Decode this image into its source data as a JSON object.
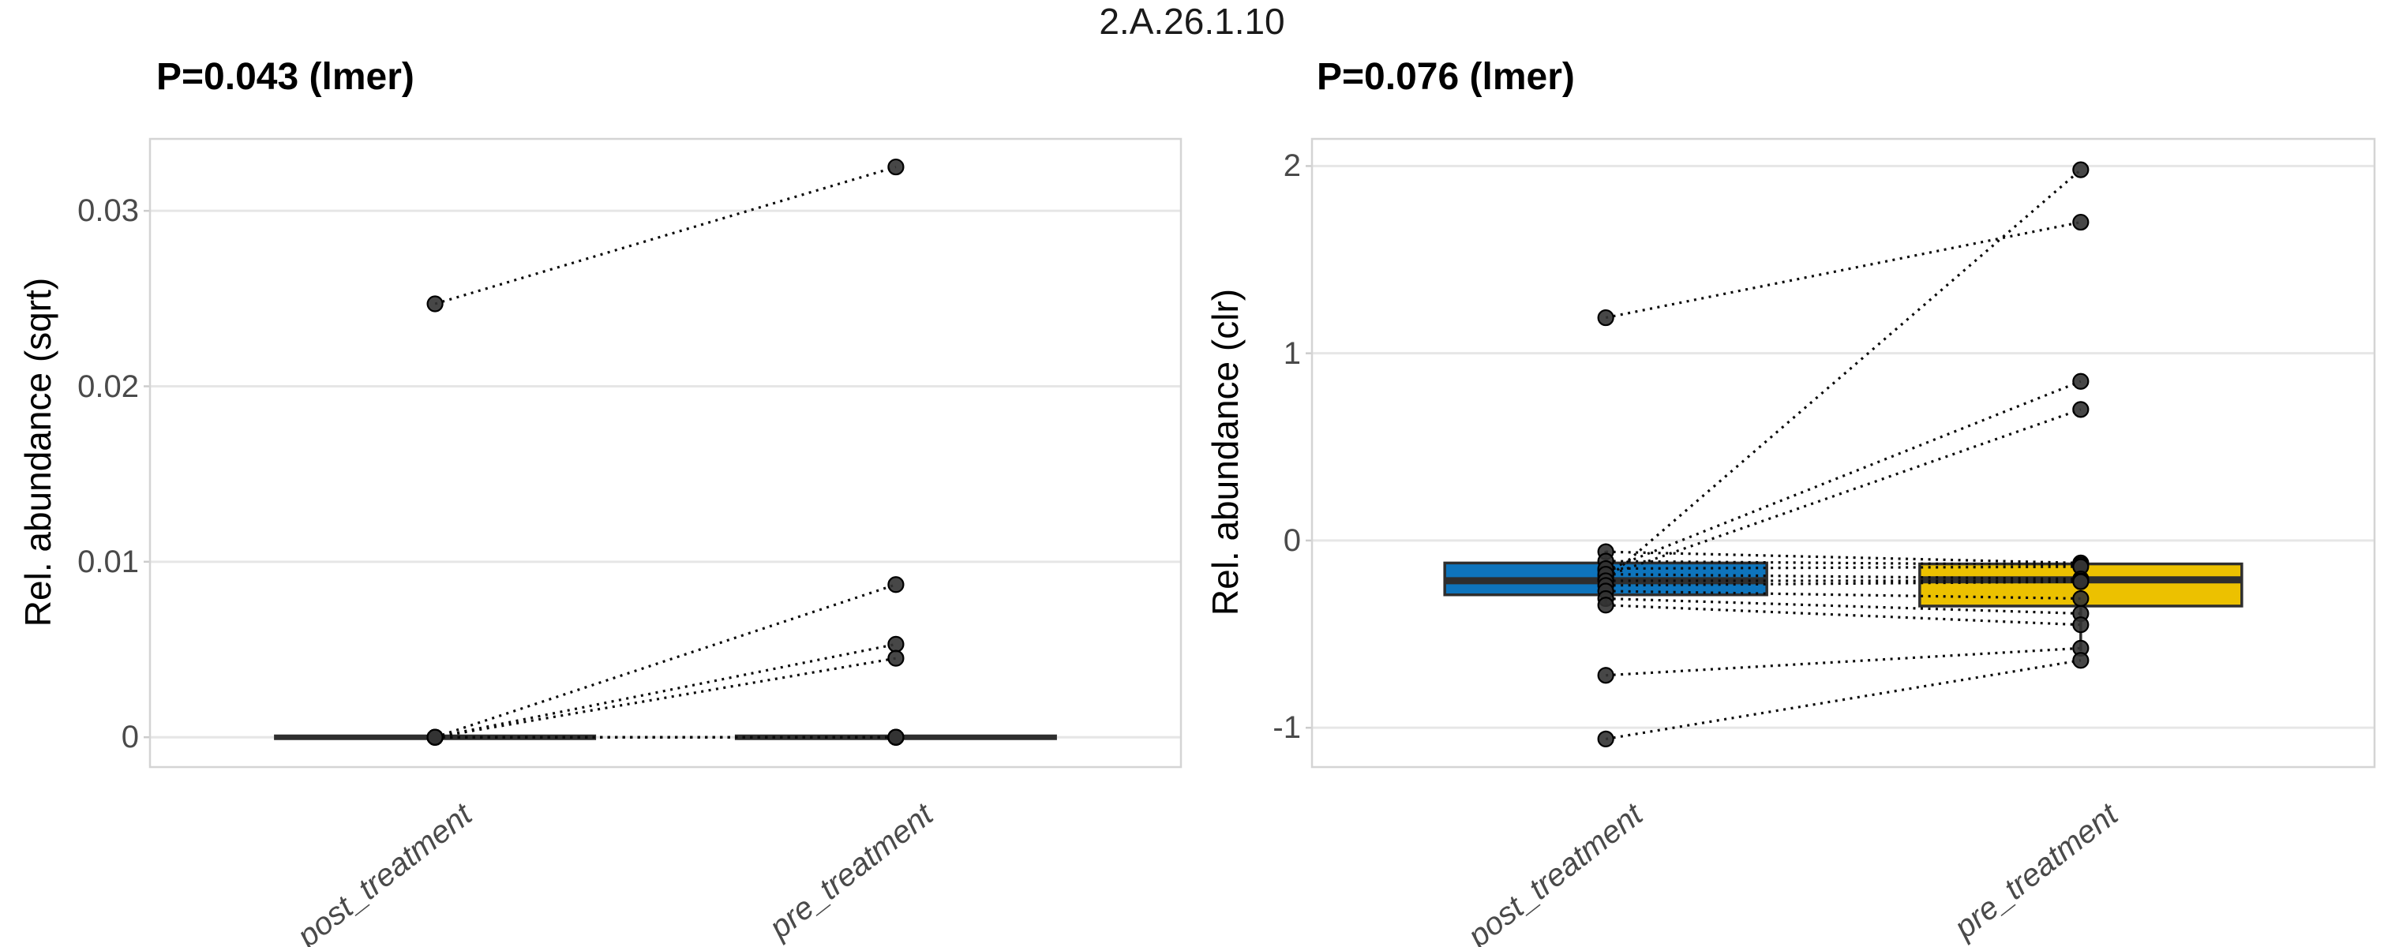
{
  "figure_title": "2.A.26.1.10",
  "colors": {
    "post_box_fill": "#0E74BC",
    "pre_box_fill": "#ECC100",
    "box_stroke": "#2e2e2e",
    "point_fill": "#333333",
    "point_stroke": "#000000",
    "pair_line": "#0a0a0a",
    "gridline": "#e6e6e6",
    "panel_border": "#d4d4d4",
    "tick_text": "#4a4a4a",
    "title_text": "#000000"
  },
  "chart_data": [
    {
      "type": "scatter",
      "subtype": "paired_points_with_boxplots",
      "title": "P=0.043 (lmer)",
      "ylabel": "Rel. abundance (sqrt)",
      "xlabel": "",
      "categories": [
        "post_treatment",
        "pre_treatment"
      ],
      "ylim": [
        -0.0017,
        0.0341
      ],
      "yticks": {
        "values": [
          0,
          0.01,
          0.02,
          0.03
        ],
        "labels": [
          "0",
          "0.01",
          "0.02",
          "0.03"
        ]
      },
      "grid": "horizontal",
      "legend": "none",
      "pairs_note": "each pair is [post_treatment_value, pre_treatment_value]",
      "pairs": [
        [
          0.0247,
          0.0325
        ],
        [
          0,
          0.0087
        ],
        [
          0,
          0.0053
        ],
        [
          0,
          0.0045
        ],
        [
          0,
          0
        ],
        [
          0,
          0
        ],
        [
          0,
          0
        ],
        [
          0,
          0
        ],
        [
          0,
          0
        ],
        [
          0,
          0
        ],
        [
          0,
          0
        ],
        [
          0,
          0
        ],
        [
          0,
          0
        ],
        [
          0,
          0
        ],
        [
          0,
          0
        ]
      ],
      "boxplots": [
        {
          "category": "post_treatment",
          "fill": "#0E74BC",
          "whisker_low": 0,
          "q1": 0,
          "median": 0,
          "q3": 0,
          "whisker_high": 0
        },
        {
          "category": "pre_treatment",
          "fill": "#ECC100",
          "whisker_low": 0,
          "q1": 0,
          "median": 0,
          "q3": 0,
          "whisker_high": 0
        }
      ]
    },
    {
      "type": "scatter",
      "subtype": "paired_points_with_boxplots",
      "title": "P=0.076 (lmer)",
      "ylabel": "Rel. abundance (clr)",
      "xlabel": "",
      "categories": [
        "post_treatment",
        "pre_treatment"
      ],
      "ylim": [
        -1.21,
        2.145
      ],
      "yticks": {
        "values": [
          -1,
          0,
          1,
          2
        ],
        "labels": [
          "-1",
          "0",
          "1",
          "2"
        ]
      },
      "grid": "horizontal",
      "legend": "none",
      "pairs_note": "each pair is [post_treatment_value, pre_treatment_value]",
      "pairs": [
        [
          -0.21,
          1.98
        ],
        [
          1.19,
          1.7
        ],
        [
          -0.16,
          0.85
        ],
        [
          -0.19,
          0.7
        ],
        [
          -0.06,
          -0.12
        ],
        [
          -0.11,
          -0.13
        ],
        [
          -0.15,
          -0.14
        ],
        [
          -0.18,
          -0.205
        ],
        [
          -0.215,
          -0.215
        ],
        [
          -0.24,
          -0.22
        ],
        [
          -0.27,
          -0.31
        ],
        [
          -0.31,
          -0.39
        ],
        [
          -0.345,
          -0.45
        ],
        [
          -0.72,
          -0.575
        ],
        [
          -1.06,
          -0.64
        ]
      ],
      "boxplots": [
        {
          "category": "post_treatment",
          "fill": "#0E74BC",
          "whisker_low": -0.35,
          "q1": -0.29,
          "median": -0.215,
          "q3": -0.12,
          "whisker_high": -0.055
        },
        {
          "category": "pre_treatment",
          "fill": "#ECC100",
          "whisker_low": -0.59,
          "q1": -0.35,
          "median": -0.21,
          "q3": -0.125,
          "whisker_high": -0.125
        }
      ]
    }
  ]
}
